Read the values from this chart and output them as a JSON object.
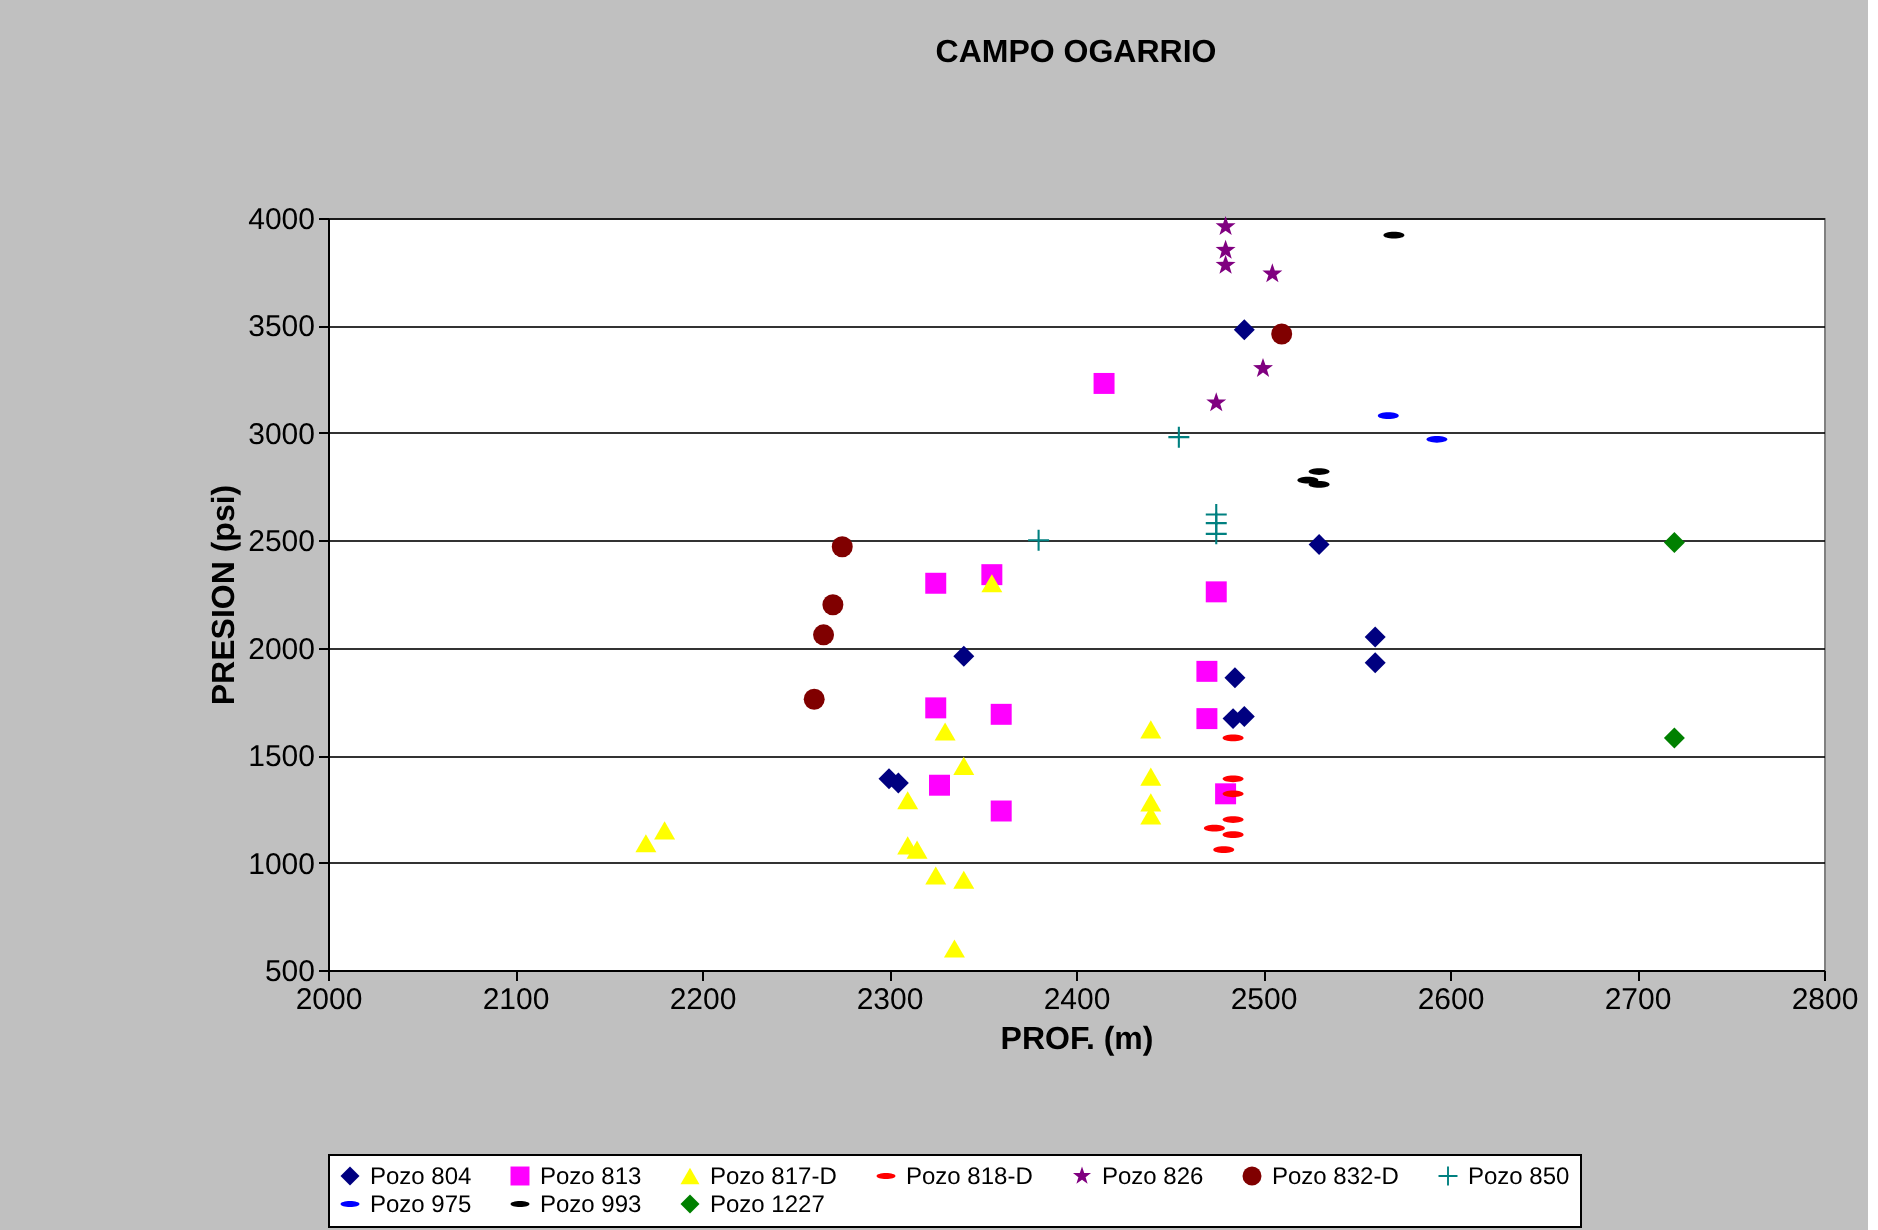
{
  "chart_data": {
    "type": "scatter",
    "title": "CAMPO OGARRIO",
    "xlabel": "PROF. (m)",
    "ylabel": "PRESION (psi)",
    "xlim": [
      2000,
      2800
    ],
    "xticks": [
      2000,
      2100,
      2200,
      2300,
      2400,
      2500,
      2600,
      2700,
      2800
    ],
    "ylim": [
      500,
      4000
    ],
    "yticks": [
      500,
      1000,
      1500,
      2000,
      2500,
      3000,
      3500,
      4000
    ],
    "grid": "y",
    "legend": "bottom",
    "series": [
      {
        "name": "Pozo 804",
        "color": "#000080",
        "marker": "diamond",
        "x": [
          2300,
          2305,
          2340,
          2490,
          2530,
          2560,
          2560,
          2485,
          2490,
          2484
        ],
        "values": [
          1390,
          1370,
          1960,
          3480,
          2480,
          2050,
          1930,
          1860,
          1680,
          1670
        ]
      },
      {
        "name": "Pozo 813",
        "color": "#ff00ff",
        "marker": "square",
        "x": [
          2325,
          2355,
          2325,
          2360,
          2327,
          2360,
          2415,
          2475,
          2470,
          2470,
          2480
        ],
        "values": [
          2300,
          2340,
          1720,
          1690,
          1360,
          1240,
          3230,
          2260,
          1890,
          1670,
          1320
        ]
      },
      {
        "name": "Pozo 817-D",
        "color": "#ffff00",
        "marker": "triangle",
        "x": [
          2170,
          2180,
          2310,
          2310,
          2315,
          2325,
          2340,
          2335,
          2330,
          2340,
          2355,
          2440,
          2440,
          2440,
          2440
        ],
        "values": [
          1090,
          1150,
          1290,
          1080,
          1060,
          940,
          920,
          600,
          1610,
          1450,
          2300,
          1620,
          1400,
          1280,
          1220
        ]
      },
      {
        "name": "Pozo 818-D",
        "color": "#ff0000",
        "x": [
          2484,
          2484,
          2484,
          2484,
          2484,
          2474,
          2479
        ],
        "values": [
          1580,
          1390,
          1320,
          1200,
          1130,
          1160,
          1060
        ]
      },
      {
        "name": "Pozo 826",
        "color": "#800080",
        "marker": "star",
        "x": [
          2480,
          2480,
          2480,
          2505,
          2500,
          2475
        ],
        "values": [
          3960,
          3850,
          3780,
          3740,
          3300,
          3140
        ]
      },
      {
        "name": "Pozo 832-D",
        "color": "#800000",
        "marker": "circle",
        "x": [
          2275,
          2270,
          2265,
          2260,
          2510
        ],
        "values": [
          2470,
          2200,
          2060,
          1760,
          3460
        ]
      },
      {
        "name": "Pozo 850",
        "color": "#008080",
        "marker": "cross",
        "x": [
          2380,
          2455,
          2475,
          2475,
          2475
        ],
        "values": [
          2500,
          2980,
          2620,
          2580,
          2530
        ]
      },
      {
        "name": "Pozo 975",
        "color": "#0000ff",
        "x": [
          2567,
          2593
        ],
        "values": [
          3080,
          2970
        ]
      },
      {
        "name": "Pozo 993",
        "color": "#000000",
        "x": [
          2570,
          2530,
          2530,
          2524
        ],
        "values": [
          3920,
          2820,
          2760,
          2780
        ]
      },
      {
        "name": "Pozo 1227",
        "color": "#008000",
        "marker": "diamond",
        "x": [
          2720,
          2720
        ],
        "values": [
          2490,
          1580
        ]
      }
    ]
  }
}
